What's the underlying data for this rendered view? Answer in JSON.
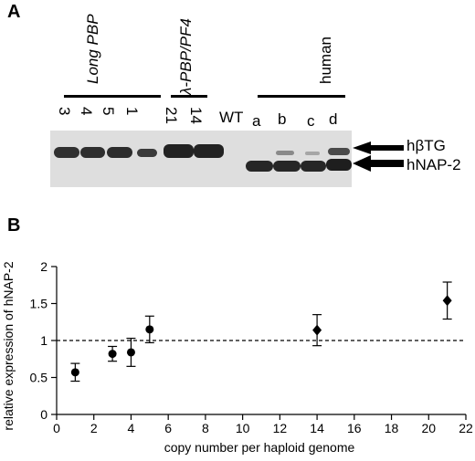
{
  "panel_a": {
    "letter": "A",
    "groups": {
      "long_pbp": "Long PBP",
      "lambda": "λ-PBP/PF4",
      "human": "human"
    },
    "lanes": [
      "3",
      "4",
      "5",
      "1",
      "21",
      "14",
      "WT",
      "a",
      "b",
      "c",
      "d"
    ],
    "band_labels": {
      "upper": "hβTG",
      "lower": "hNAP-2"
    }
  },
  "panel_b": {
    "letter": "B"
  },
  "chart_data": {
    "type": "scatter",
    "title": "",
    "xlabel": "copy number per haploid genome",
    "ylabel": "relative expression of hNAP-2",
    "xlim": [
      0,
      22
    ],
    "ylim": [
      0,
      2
    ],
    "xticks": [
      "0",
      "2",
      "4",
      "6",
      "8",
      "10",
      "12",
      "14",
      "16",
      "18",
      "20",
      "22"
    ],
    "yticks": [
      "0",
      "0.5",
      "1",
      "1.5",
      "2"
    ],
    "reference_line": 1,
    "grid": false,
    "series": [
      {
        "marker": "circle",
        "x": [
          1,
          3,
          4,
          5
        ],
        "y": [
          0.57,
          0.82,
          0.84,
          1.15
        ],
        "error": [
          0.12,
          0.1,
          0.19,
          0.18
        ]
      },
      {
        "marker": "diamond",
        "x": [
          14,
          21
        ],
        "y": [
          1.14,
          1.54
        ],
        "error": [
          0.21,
          0.25
        ]
      }
    ]
  }
}
